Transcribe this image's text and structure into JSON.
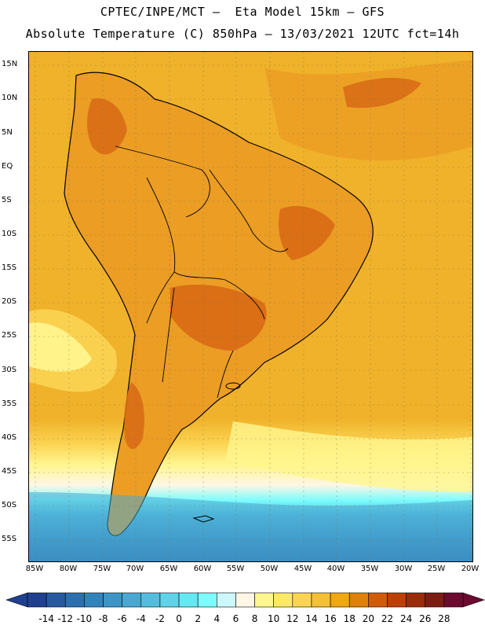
{
  "header": {
    "line1": "CPTEC/INPE/MCT –  Eta Model 15km – GFS",
    "line2": "Absolute Temperature (C) 850hPa – 13/03/2021 12UTC fct=14h"
  },
  "axes": {
    "lat_labels": [
      "15N",
      "10N",
      "5N",
      "EQ",
      "5S",
      "10S",
      "15S",
      "20S",
      "25S",
      "30S",
      "35S",
      "40S",
      "45S",
      "50S",
      "55S"
    ],
    "lon_labels": [
      "85W",
      "80W",
      "75W",
      "70W",
      "65W",
      "60W",
      "55W",
      "50W",
      "45W",
      "40W",
      "35W",
      "30W",
      "25W",
      "20W"
    ]
  },
  "colorbar": {
    "ticks": [
      "-14",
      "-12",
      "-10",
      "-8",
      "-6",
      "-4",
      "-2",
      "0",
      "2",
      "4",
      "6",
      "8",
      "10",
      "12",
      "14",
      "16",
      "18",
      "20",
      "22",
      "24",
      "26",
      "28"
    ],
    "colors": [
      "#1f3f8f",
      "#26599f",
      "#2c6fae",
      "#3383bb",
      "#3d95c6",
      "#48a8d2",
      "#54bddd",
      "#5fd3e8",
      "#66e8f3",
      "#7dfcfd",
      "#ccf8fd",
      "#fff6e5",
      "#fff68f",
      "#fde967",
      "#fbd453",
      "#f4c035",
      "#f0a710",
      "#e07f0b",
      "#cf5c09",
      "#bc3f08",
      "#9c2b08",
      "#7c1d12",
      "#6c0a30"
    ]
  },
  "map": {
    "ocean_color": "#f0b22a",
    "land_color": "#eb9d24",
    "hot_color": "#d96d16",
    "cold_color": "#50c8e8",
    "coast_color": "#000000"
  }
}
